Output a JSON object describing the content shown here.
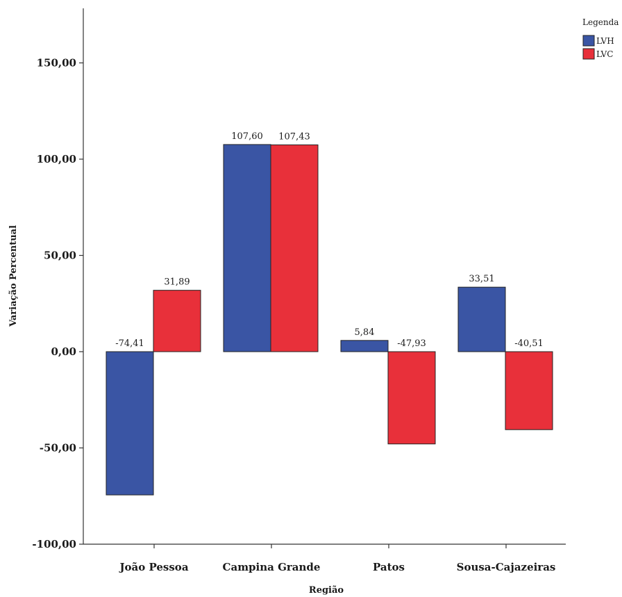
{
  "chart_data": {
    "type": "bar",
    "title": "",
    "xlabel": "Região",
    "ylabel": "Variação Percentual",
    "ylim": [
      -100,
      175
    ],
    "yticks": [
      -100,
      -50,
      0,
      50,
      100,
      150
    ],
    "ytick_labels": [
      "-100,00",
      "-50,00",
      "0,00",
      "50,00",
      "100,00",
      "150,00"
    ],
    "categories": [
      "João Pessoa",
      "Campina Grande",
      "Patos",
      "Sousa-Cajazeiras"
    ],
    "series": [
      {
        "name": "LVH",
        "color": "#3a55a4",
        "values": [
          -74.41,
          107.6,
          5.84,
          33.51
        ],
        "labels": [
          "-74,41",
          "107,60",
          "5,84",
          "33,51"
        ]
      },
      {
        "name": "LVC",
        "color": "#e8303a",
        "values": [
          31.89,
          107.43,
          -47.93,
          -40.51
        ],
        "labels": [
          "31,89",
          "107,43",
          "-47,93",
          "-40,51"
        ]
      }
    ],
    "legend": {
      "title": "Legenda",
      "position": "top-right"
    },
    "grid": false
  }
}
